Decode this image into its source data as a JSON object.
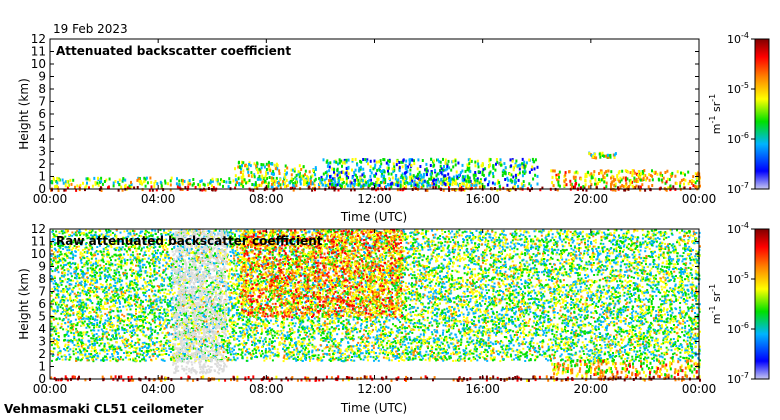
{
  "date_label": "19 Feb 2023",
  "instrument_label": "Vehmasmaki CL51 ceilometer",
  "colors": {
    "scale": [
      "#c8c8f0",
      "#0000ff",
      "#00b4ff",
      "#00e000",
      "#ffff00",
      "#ff8000",
      "#ff0000",
      "#800000"
    ],
    "background": "#ffffff",
    "missing": "#dcdcdc"
  },
  "chart_data": [
    {
      "type": "heatmap",
      "title": "Attenuated backscatter coefficient",
      "xlabel": "Time (UTC)",
      "ylabel": "Height (km)",
      "x_ticks": [
        "00:00",
        "04:00",
        "08:00",
        "12:00",
        "16:00",
        "20:00",
        "00:00"
      ],
      "y_ticks": [
        "0",
        "1",
        "2",
        "3",
        "4",
        "5",
        "6",
        "7",
        "8",
        "9",
        "10",
        "11",
        "12"
      ],
      "xlim_hours": [
        0,
        24
      ],
      "ylim_km": [
        0,
        12
      ],
      "colorbar": {
        "scale": "log",
        "tick_labels": [
          "10^-7",
          "10^-6",
          "10^-5",
          "10^-4"
        ],
        "unit": "m-1 sr-1",
        "range": [
          1e-07,
          0.0001
        ]
      },
      "features": [
        {
          "name": "surface layer",
          "hours": [
            0,
            24
          ],
          "height_km": [
            0,
            0.3
          ],
          "level": 0.85
        },
        {
          "name": "boundary layer echoes",
          "hours": [
            0,
            16
          ],
          "height_km": [
            0.3,
            1.0
          ],
          "level": 0.45
        },
        {
          "name": "low cloud",
          "hours": [
            6.8,
            8.5
          ],
          "height_km": [
            0.3,
            2.3
          ],
          "level": 0.5
        },
        {
          "name": "low cloud",
          "hours": [
            8.6,
            9.8
          ],
          "height_km": [
            0.4,
            2.0
          ],
          "level": 0.45
        },
        {
          "name": "scattered echoes",
          "hours": [
            10,
            18
          ],
          "height_km": [
            0.3,
            2.5
          ],
          "level": 0.35
        },
        {
          "name": "cloud layer",
          "hours": [
            18.5,
            24
          ],
          "height_km": [
            0.3,
            1.6
          ],
          "level": 0.6
        },
        {
          "name": "elevated cloud",
          "hours": [
            19.9,
            20.9
          ],
          "height_km": [
            2.6,
            3.0
          ],
          "level": 0.5
        }
      ]
    },
    {
      "type": "heatmap",
      "title": "Raw attenuated backscatter coefficient",
      "xlabel": "Time (UTC)",
      "ylabel": "Height (km)",
      "x_ticks": [
        "00:00",
        "04:00",
        "08:00",
        "12:00",
        "16:00",
        "20:00",
        "00:00"
      ],
      "y_ticks": [
        "0",
        "1",
        "2",
        "3",
        "4",
        "5",
        "6",
        "7",
        "8",
        "9",
        "10",
        "11",
        "12"
      ],
      "xlim_hours": [
        0,
        24
      ],
      "ylim_km": [
        0,
        12
      ],
      "colorbar": {
        "scale": "log",
        "tick_labels": [
          "10^-7",
          "10^-6",
          "10^-5",
          "10^-4"
        ],
        "unit": "m-1 sr-1",
        "range": [
          1e-07,
          0.0001
        ]
      },
      "features": [
        {
          "name": "noise field",
          "hours": [
            0,
            24
          ],
          "height_km": [
            1.5,
            12
          ],
          "level": 0.45
        },
        {
          "name": "strong noise",
          "hours": [
            7,
            13
          ],
          "height_km": [
            5,
            12
          ],
          "level": 0.7
        },
        {
          "name": "low-noise gap",
          "hours": [
            4.5,
            6.5
          ],
          "height_km": [
            0.5,
            12
          ],
          "level": 0.1
        },
        {
          "name": "surface layer",
          "hours": [
            0,
            24
          ],
          "height_km": [
            0,
            0.3
          ],
          "level": 0.85
        },
        {
          "name": "cloud layer",
          "hours": [
            18.5,
            24
          ],
          "height_km": [
            0.3,
            1.6
          ],
          "level": 0.6
        }
      ]
    }
  ]
}
